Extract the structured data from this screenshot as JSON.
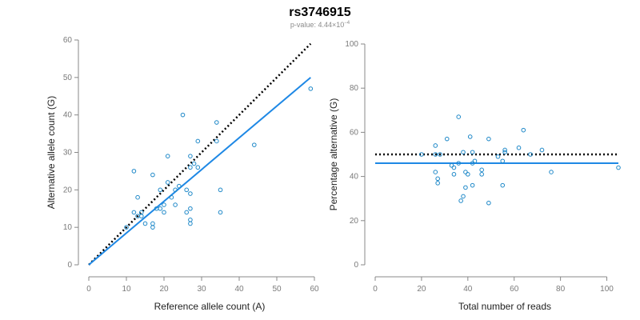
{
  "header": {
    "title": "rs3746915",
    "pvalue_prefix": "p-value: 4.44×10",
    "pvalue_exponent": "−4"
  },
  "colors": {
    "points": "#1e88c8",
    "fit_line": "#1e88e5",
    "reference_line": "#000000"
  },
  "chart_data": [
    {
      "type": "scatter",
      "xlabel": "Reference allele count (A)",
      "ylabel": "Alternative allele count (G)",
      "xlim": [
        0,
        60
      ],
      "ylim": [
        0,
        60
      ],
      "xticks": [
        0,
        10,
        20,
        30,
        40,
        50,
        60
      ],
      "yticks": [
        0,
        10,
        20,
        30,
        40,
        50,
        60
      ],
      "points": [
        [
          12,
          25
        ],
        [
          12,
          14
        ],
        [
          13,
          18
        ],
        [
          13,
          13
        ],
        [
          14,
          13
        ],
        [
          14,
          14
        ],
        [
          15,
          11
        ],
        [
          10,
          10
        ],
        [
          17,
          24
        ],
        [
          17,
          11
        ],
        [
          17,
          10
        ],
        [
          18,
          15
        ],
        [
          19,
          15
        ],
        [
          19,
          20
        ],
        [
          20,
          14
        ],
        [
          20,
          16
        ],
        [
          21,
          29
        ],
        [
          21,
          22
        ],
        [
          22,
          18
        ],
        [
          23,
          20
        ],
        [
          23,
          16
        ],
        [
          24,
          21
        ],
        [
          25,
          40
        ],
        [
          26,
          20
        ],
        [
          26,
          14
        ],
        [
          27,
          15
        ],
        [
          27,
          19
        ],
        [
          27,
          12
        ],
        [
          27,
          11
        ],
        [
          27,
          29
        ],
        [
          27,
          26
        ],
        [
          28,
          27
        ],
        [
          29,
          33
        ],
        [
          29,
          26
        ],
        [
          34,
          38
        ],
        [
          34,
          33
        ],
        [
          35,
          20
        ],
        [
          35,
          14
        ],
        [
          44,
          32
        ],
        [
          59,
          47
        ]
      ],
      "fit_line": [
        [
          0,
          0
        ],
        [
          59,
          50
        ]
      ],
      "reference_line": [
        [
          0,
          0
        ],
        [
          59,
          59
        ]
      ]
    },
    {
      "type": "scatter",
      "xlabel": "Total number of reads",
      "ylabel": "Percentage alternative (G)",
      "xlim": [
        0,
        105
      ],
      "ylim": [
        0,
        100
      ],
      "xticks": [
        0,
        20,
        40,
        60,
        80,
        100
      ],
      "yticks": [
        0,
        20,
        40,
        60,
        80,
        100
      ],
      "points": [
        [
          20,
          50
        ],
        [
          26,
          50
        ],
        [
          26,
          42
        ],
        [
          26,
          54
        ],
        [
          27,
          37
        ],
        [
          27,
          39
        ],
        [
          28,
          50
        ],
        [
          31,
          57
        ],
        [
          33,
          45
        ],
        [
          34,
          41
        ],
        [
          34,
          44
        ],
        [
          36,
          46
        ],
        [
          36,
          67
        ],
        [
          37,
          29
        ],
        [
          38,
          51
        ],
        [
          38,
          31
        ],
        [
          39,
          42
        ],
        [
          39,
          35
        ],
        [
          40,
          41
        ],
        [
          41,
          58
        ],
        [
          42,
          46
        ],
        [
          42,
          51
        ],
        [
          42,
          36
        ],
        [
          43,
          47
        ],
        [
          46,
          43
        ],
        [
          46,
          41
        ],
        [
          49,
          57
        ],
        [
          49,
          28
        ],
        [
          53,
          49
        ],
        [
          55,
          47
        ],
        [
          55,
          36
        ],
        [
          56,
          52
        ],
        [
          56,
          51
        ],
        [
          62,
          53
        ],
        [
          64,
          61
        ],
        [
          67,
          50
        ],
        [
          72,
          52
        ],
        [
          76,
          42
        ],
        [
          105,
          44
        ]
      ],
      "fit_line": [
        [
          0,
          46
        ],
        [
          105,
          46
        ]
      ],
      "reference_line": [
        [
          0,
          50
        ],
        [
          105,
          50
        ]
      ]
    }
  ]
}
